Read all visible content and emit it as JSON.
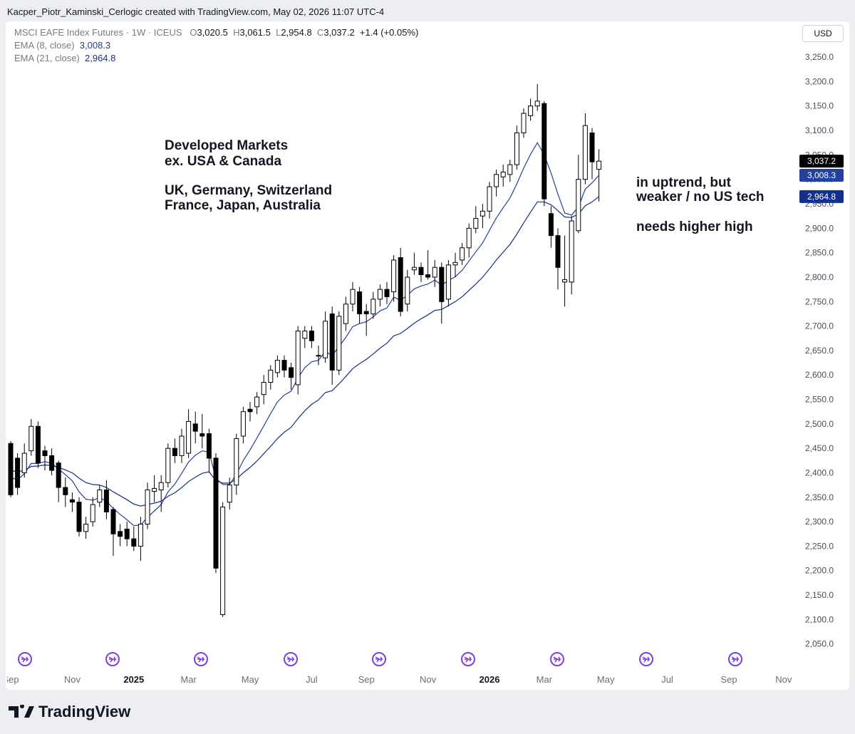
{
  "header": {
    "attribution": "Kacper_Piotr_Kaminski_Cerlogic created with TradingView.com, May 02, 2026 11:07 UTC-4"
  },
  "chart_data": {
    "type": "candlestick",
    "title": "MSCI EAFE Index Futures · 1W · ICEUS",
    "legend_letters": {
      "open": "O",
      "high": "H",
      "low": "L",
      "close": "C"
    },
    "legend_values": {
      "open": "3,020.5",
      "high": "3,061.5",
      "low": "2,954.8",
      "close": "3,037.2"
    },
    "change": {
      "value": 1.4,
      "label": "+1.4"
    },
    "change_percent": {
      "value": 0.05,
      "label": "(+0.05%)"
    },
    "currency": "USD",
    "up_color": "#ffffff",
    "down_color": "#000000",
    "last_close_label": "3,037.2",
    "categories": [
      "Sep",
      null,
      null,
      null,
      null,
      null,
      null,
      null,
      null,
      "Nov",
      null,
      null,
      null,
      null,
      null,
      null,
      null,
      null,
      "2025",
      null,
      null,
      null,
      null,
      null,
      null,
      null,
      "Mar",
      null,
      null,
      null,
      null,
      null,
      null,
      null,
      null,
      "May",
      null,
      null,
      null,
      null,
      null,
      null,
      null,
      null,
      "Jul",
      null,
      null,
      null,
      null,
      null,
      null,
      null,
      "Sep",
      null,
      null,
      null,
      null,
      null,
      null,
      null,
      null,
      "Nov",
      null,
      null,
      null,
      null,
      null,
      null,
      null,
      null,
      "2026",
      null,
      null,
      null,
      null,
      null,
      null,
      null,
      "Mar",
      null,
      null,
      null,
      null,
      null,
      null,
      null,
      null,
      "May",
      null,
      null,
      null,
      null,
      null,
      null,
      null,
      null,
      "Jul",
      null,
      null,
      null,
      null,
      null,
      null,
      null,
      null,
      "Sep",
      null,
      null,
      null,
      null,
      null,
      null,
      null,
      "Nov"
    ],
    "open": [
      2460,
      2430,
      2400,
      2445,
      2495,
      2445,
      2435,
      2420,
      2370,
      2345,
      2340,
      2280,
      2300,
      2340,
      2365,
      2325,
      2280,
      2285,
      2265,
      2250,
      2295,
      2362,
      2365,
      2380,
      2450,
      2435,
      2440,
      2500,
      2480,
      2480,
      2430,
      2110,
      2340,
      2375,
      2475,
      2530,
      2535,
      2560,
      2585,
      2605,
      2630,
      2615,
      2580,
      2675,
      2690,
      2640,
      2635,
      2725,
      2610,
      2705,
      2745,
      2770,
      2730,
      2725,
      2755,
      2775,
      2770,
      2840,
      2745,
      2815,
      2820,
      2805,
      2800,
      2820,
      2755,
      2825,
      2835,
      2860,
      2900,
      2925,
      2935,
      2985,
      3005,
      3010,
      3030,
      3095,
      3130,
      3150,
      3155,
      2930,
      2885,
      2790,
      2790,
      2895,
      3000,
      3095,
      3020.5,
      null,
      null,
      null,
      null,
      null,
      null,
      null,
      null,
      null,
      null,
      null,
      null,
      null,
      null,
      null,
      null,
      null,
      null,
      null,
      null,
      null,
      null,
      null,
      null,
      null,
      null,
      null
    ],
    "high": [
      2465,
      2440,
      2460,
      2510,
      2505,
      2455,
      2450,
      2425,
      2390,
      2360,
      2350,
      2310,
      2350,
      2375,
      2385,
      2330,
      2295,
      2300,
      2290,
      2310,
      2380,
      2395,
      2395,
      2460,
      2470,
      2490,
      2530,
      2525,
      2520,
      2490,
      2440,
      2340,
      2390,
      2480,
      2535,
      2545,
      2565,
      2600,
      2620,
      2640,
      2640,
      2625,
      2700,
      2700,
      2700,
      2660,
      2730,
      2740,
      2730,
      2760,
      2790,
      2780,
      2745,
      2770,
      2785,
      2790,
      2845,
      2860,
      2815,
      2850,
      2830,
      2855,
      2835,
      2830,
      2835,
      2850,
      2870,
      2910,
      2945,
      2950,
      2995,
      3020,
      3030,
      3040,
      3110,
      3145,
      3165,
      3195,
      3160,
      2945,
      2900,
      2885,
      2925,
      3050,
      3135,
      3105,
      3061.5,
      null,
      null,
      null,
      null,
      null,
      null,
      null,
      null,
      null,
      null,
      null,
      null,
      null,
      null,
      null,
      null,
      null,
      null,
      null,
      null,
      null,
      null,
      null,
      null,
      null,
      null,
      null
    ],
    "low": [
      2350,
      2355,
      2390,
      2435,
      2410,
      2405,
      2395,
      2340,
      2330,
      2320,
      2270,
      2265,
      2290,
      2330,
      2305,
      2230,
      2250,
      2250,
      2240,
      2220,
      2285,
      2340,
      2320,
      2370,
      2420,
      2420,
      2430,
      2460,
      2450,
      2400,
      2195,
      2105,
      2325,
      2355,
      2460,
      2505,
      2520,
      2540,
      2570,
      2595,
      2595,
      2570,
      2560,
      2655,
      2655,
      2620,
      2625,
      2580,
      2600,
      2690,
      2730,
      2705,
      2680,
      2715,
      2740,
      2745,
      2750,
      2720,
      2730,
      2805,
      2790,
      2795,
      2780,
      2705,
      2740,
      2800,
      2825,
      2840,
      2890,
      2900,
      2920,
      2965,
      2985,
      2995,
      3020,
      3085,
      3120,
      3140,
      2945,
      2860,
      2775,
      2740,
      2765,
      2890,
      2990,
      3000,
      2954.8,
      null,
      null,
      null,
      null,
      null,
      null,
      null,
      null,
      null,
      null,
      null,
      null,
      null,
      null,
      null,
      null,
      null,
      null,
      null,
      null,
      null,
      null,
      null,
      null,
      null,
      null,
      null
    ],
    "close": [
      2355,
      2370,
      2440,
      2495,
      2420,
      2435,
      2405,
      2370,
      2355,
      2340,
      2280,
      2295,
      2335,
      2365,
      2320,
      2275,
      2270,
      2265,
      2250,
      2295,
      2365,
      2368,
      2380,
      2450,
      2435,
      2475,
      2505,
      2485,
      2475,
      2430,
      2205,
      2330,
      2375,
      2470,
      2525,
      2525,
      2555,
      2585,
      2610,
      2630,
      2610,
      2595,
      2690,
      2690,
      2670,
      2640,
      2710,
      2610,
      2720,
      2745,
      2775,
      2725,
      2725,
      2755,
      2775,
      2760,
      2835,
      2730,
      2800,
      2820,
      2805,
      2800,
      2820,
      2750,
      2825,
      2830,
      2860,
      2900,
      2920,
      2935,
      2985,
      3010,
      3015,
      3030,
      3095,
      3135,
      3150,
      3160,
      2960,
      2885,
      2820,
      2795,
      2915,
      3000,
      3110,
      3035.8,
      3037.2,
      null,
      null,
      null,
      null,
      null,
      null,
      null,
      null,
      null,
      null,
      null,
      null,
      null,
      null,
      null,
      null,
      null,
      null,
      null,
      null,
      null,
      null,
      null,
      null,
      null,
      null,
      null
    ],
    "series": [
      {
        "name": "EMA (8, close)",
        "color": "#24419f",
        "last_label": "3,008.3",
        "values": [
          2390,
          2386,
          2398,
          2419,
          2419,
          2423,
          2419,
          2408,
          2396,
          2384,
          2361,
          2346,
          2344,
          2349,
          2342,
          2327,
          2315,
          2304,
          2292,
          2293,
          2309,
          2322,
          2335,
          2361,
          2377,
          2399,
          2422,
          2436,
          2445,
          2442,
          2389,
          2376,
          2376,
          2397,
          2425,
          2447,
          2471,
          2496,
          2521,
          2545,
          2559,
          2567,
          2594,
          2615,
          2627,
          2630,
          2648,
          2640,
          2658,
          2677,
          2699,
          2705,
          2709,
          2719,
          2731,
          2737,
          2759,
          2753,
          2763,
          2776,
          2782,
          2786,
          2794,
          2784,
          2793,
          2801,
          2814,
          2833,
          2852,
          2870,
          2896,
          2921,
          2942,
          2962,
          2991,
          3023,
          3051,
          3075,
          3050,
          3013,
          2970,
          2931,
          2927,
          2943,
          2980,
          2993,
          3008.3,
          null,
          null,
          null,
          null,
          null,
          null,
          null,
          null,
          null,
          null,
          null,
          null,
          null,
          null,
          null,
          null,
          null,
          null,
          null,
          null,
          null,
          null,
          null,
          null,
          null,
          null,
          null
        ]
      },
      {
        "name": "EMA (21, close)",
        "color": "#13308c",
        "last_label": "2,964.8",
        "values": [
          2405,
          2402,
          2405,
          2413,
          2414,
          2416,
          2415,
          2411,
          2406,
          2400,
          2389,
          2380,
          2376,
          2375,
          2370,
          2361,
          2353,
          2345,
          2336,
          2332,
          2335,
          2338,
          2342,
          2352,
          2359,
          2370,
          2382,
          2391,
          2399,
          2402,
          2384,
          2379,
          2379,
          2387,
          2400,
          2411,
          2424,
          2439,
          2454,
          2470,
          2483,
          2493,
          2511,
          2527,
          2540,
          2549,
          2564,
          2568,
          2582,
          2597,
          2613,
          2623,
          2632,
          2643,
          2655,
          2665,
          2680,
          2685,
          2695,
          2706,
          2715,
          2723,
          2732,
          2734,
          2742,
          2750,
          2760,
          2773,
          2786,
          2800,
          2817,
          2835,
          2851,
          2867,
          2888,
          2911,
          2933,
          2954,
          2954,
          2948,
          2936,
          2923,
          2922,
          2929,
          2946,
          2954,
          2964.8,
          null,
          null,
          null,
          null,
          null,
          null,
          null,
          null,
          null,
          null,
          null,
          null,
          null,
          null,
          null,
          null,
          null,
          null,
          null,
          null,
          null,
          null,
          null,
          null,
          null,
          null,
          null
        ]
      }
    ],
    "ylim": [
      2000,
      3323
    ],
    "yticks": [
      {
        "value": 2050,
        "label": "2,050.0"
      },
      {
        "value": 2100,
        "label": "2,100.0"
      },
      {
        "value": 2150,
        "label": "2,150.0"
      },
      {
        "value": 2200,
        "label": "2,200.0"
      },
      {
        "value": 2250,
        "label": "2,250.0"
      },
      {
        "value": 2300,
        "label": "2,300.0"
      },
      {
        "value": 2350,
        "label": "2,350.0"
      },
      {
        "value": 2400,
        "label": "2,400.0"
      },
      {
        "value": 2450,
        "label": "2,450.0"
      },
      {
        "value": 2500,
        "label": "2,500.0"
      },
      {
        "value": 2550,
        "label": "2,550.0"
      },
      {
        "value": 2600,
        "label": "2,600.0"
      },
      {
        "value": 2650,
        "label": "2,650.0"
      },
      {
        "value": 2700,
        "label": "2,700.0"
      },
      {
        "value": 2750,
        "label": "2,750.0"
      },
      {
        "value": 2800,
        "label": "2,800.0"
      },
      {
        "value": 2850,
        "label": "2,850.0"
      },
      {
        "value": 2900,
        "label": "2,900.0"
      },
      {
        "value": 2950,
        "label": "2,950.0"
      },
      {
        "value": 3000,
        "label": "3,000.0"
      },
      {
        "value": 3050,
        "label": "3,050.0"
      },
      {
        "value": 3100,
        "label": "3,100.0"
      },
      {
        "value": 3150,
        "label": "3,150.0"
      },
      {
        "value": 3200,
        "label": "3,200.0"
      },
      {
        "value": 3250,
        "label": "3,250.0"
      }
    ],
    "grid": false,
    "annotations": [
      "Developed Markets",
      "ex. USA & Canada",
      "UK, Germany, Switzerland",
      "France, Japan, Australia",
      "in uptrend, but",
      "weaker / no US tech",
      "needs higher high"
    ]
  },
  "footer": {
    "brand": "TradingView"
  }
}
